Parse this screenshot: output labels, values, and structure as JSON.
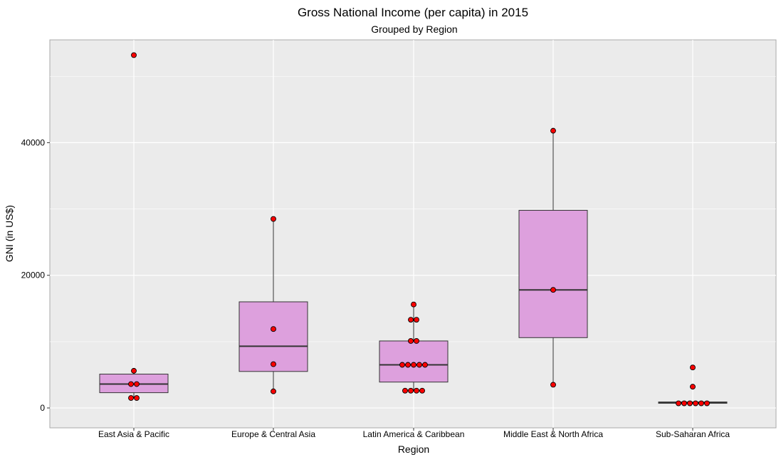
{
  "chart_data": {
    "type": "box",
    "title": "Gross National Income (per capita) in 2015",
    "subtitle": "Grouped by Region",
    "xlabel": "Region",
    "ylabel": "GNI (in US$)",
    "ylim": [
      -3000,
      55500
    ],
    "yticks": [
      0,
      20000,
      40000
    ],
    "grid": true,
    "colors": {
      "panel": "#ebebeb",
      "box_fill": "#dda0dd",
      "point_fill": "#ff0000",
      "point_stroke": "#000000",
      "gridline": "#ffffff"
    },
    "categories": [
      "East Asia & Pacific",
      "Europe & Central Asia",
      "Latin America & Caribbean",
      "Middle East & North Africa",
      "Sub-Saharan Africa"
    ],
    "boxes": [
      {
        "q1": 2300,
        "median": 3600,
        "q3": 5100,
        "whisker_low": 1500,
        "whisker_high": 5600
      },
      {
        "q1": 5500,
        "median": 9300,
        "q3": 16000,
        "whisker_low": 2500,
        "whisker_high": 28500
      },
      {
        "q1": 3900,
        "median": 6500,
        "q3": 10100,
        "whisker_low": 2600,
        "whisker_high": 15600
      },
      {
        "q1": 10600,
        "median": 17800,
        "q3": 29800,
        "whisker_low": 3500,
        "whisker_high": 41800
      },
      {
        "q1": 700,
        "median": 800,
        "q3": 900,
        "whisker_low": 700,
        "whisker_high": 900
      }
    ],
    "points": [
      [
        53200,
        5600,
        3600,
        3600,
        1500,
        1500
      ],
      [
        28500,
        11900,
        6600,
        2500
      ],
      [
        15600,
        13300,
        13300,
        10100,
        10100,
        6500,
        6500,
        6500,
        6500,
        6500,
        2600,
        2600,
        2600,
        2600
      ],
      [
        41800,
        17800,
        3500
      ],
      [
        6100,
        3200,
        700,
        700,
        700,
        700,
        700,
        700
      ]
    ]
  }
}
